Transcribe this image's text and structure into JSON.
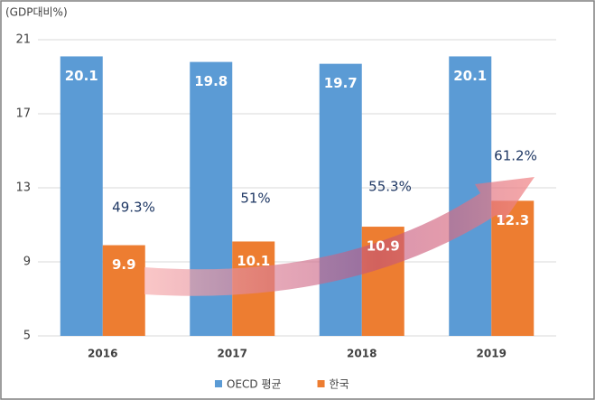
{
  "chart_data": {
    "type": "bar",
    "unit_label": "(GDP대비%)",
    "categories": [
      "2016",
      "2017",
      "2018",
      "2019"
    ],
    "series": [
      {
        "name": "OECD 평균",
        "color": "#5b9bd5",
        "values": [
          20.1,
          19.8,
          19.7,
          20.1
        ]
      },
      {
        "name": "한국",
        "color": "#ed7d31",
        "values": [
          9.9,
          10.1,
          10.9,
          12.3
        ]
      }
    ],
    "ylim": [
      5,
      21
    ],
    "yticks": [
      5,
      9,
      13,
      17,
      21
    ],
    "grid": true,
    "annotations": [
      "49.3%",
      "51%",
      "55.3%",
      "61.2%"
    ]
  }
}
